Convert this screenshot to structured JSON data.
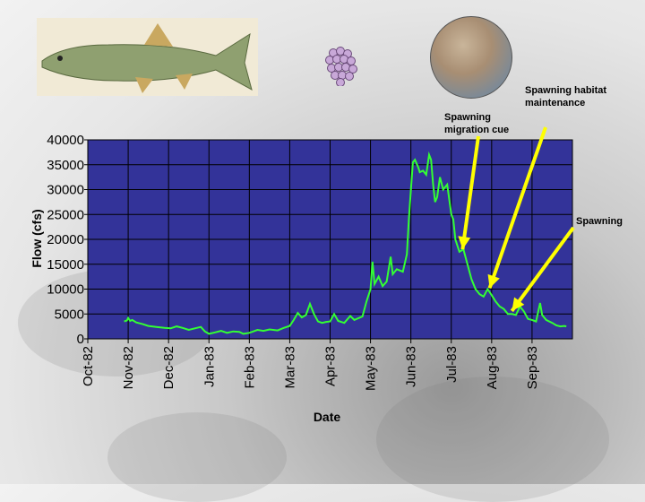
{
  "images": {
    "fish": "fish-illustration",
    "eggs": "fish-eggs-cluster",
    "gravel": "spawning-gravel-photo"
  },
  "annotations": {
    "migration_cue": [
      "Spawning",
      "migration cue"
    ],
    "habitat": [
      "Spawning habitat",
      "maintenance"
    ],
    "spawning": [
      "Spawning"
    ]
  },
  "colors": {
    "plot_bg": "#333399",
    "line": "#33ff33",
    "arrow": "#ffff00"
  },
  "chart_data": {
    "type": "line",
    "title": "",
    "xlabel": "Date",
    "ylabel": "Flow (cfs)",
    "ylim": [
      0,
      40000
    ],
    "yticks": [
      0,
      5000,
      10000,
      15000,
      20000,
      25000,
      30000,
      35000,
      40000
    ],
    "xticks": [
      "Oct-82",
      "Nov-82",
      "Dec-82",
      "Jan-83",
      "Feb-83",
      "Mar-83",
      "Apr-83",
      "May-83",
      "Jun-83",
      "Jul-83",
      "Aug-83",
      "Sep-83"
    ],
    "grid": true,
    "x_unit": "month index (0 = Oct-82)",
    "series": [
      {
        "points": [
          [
            0.9,
            3500
          ],
          [
            0.97,
            3700
          ],
          [
            1.0,
            4200
          ],
          [
            1.05,
            3600
          ],
          [
            1.1,
            3800
          ],
          [
            1.2,
            3300
          ],
          [
            1.35,
            3000
          ],
          [
            1.5,
            2600
          ],
          [
            1.7,
            2400
          ],
          [
            1.9,
            2200
          ],
          [
            2.05,
            2100
          ],
          [
            2.2,
            2500
          ],
          [
            2.35,
            2200
          ],
          [
            2.5,
            1800
          ],
          [
            2.65,
            2100
          ],
          [
            2.8,
            2400
          ],
          [
            2.9,
            1500
          ],
          [
            3.0,
            1000
          ],
          [
            3.15,
            1300
          ],
          [
            3.3,
            1600
          ],
          [
            3.45,
            1200
          ],
          [
            3.6,
            1500
          ],
          [
            3.75,
            1400
          ],
          [
            3.85,
            1000
          ],
          [
            4.0,
            1200
          ],
          [
            4.2,
            1800
          ],
          [
            4.35,
            1600
          ],
          [
            4.5,
            1900
          ],
          [
            4.7,
            1700
          ],
          [
            4.85,
            2200
          ],
          [
            5.0,
            2600
          ],
          [
            5.1,
            3800
          ],
          [
            5.2,
            5200
          ],
          [
            5.3,
            4300
          ],
          [
            5.4,
            4800
          ],
          [
            5.5,
            7000
          ],
          [
            5.6,
            5000
          ],
          [
            5.7,
            3500
          ],
          [
            5.8,
            3200
          ],
          [
            5.9,
            3400
          ],
          [
            6.0,
            3500
          ],
          [
            6.1,
            5000
          ],
          [
            6.2,
            3600
          ],
          [
            6.35,
            3200
          ],
          [
            6.5,
            4600
          ],
          [
            6.6,
            3800
          ],
          [
            6.8,
            4500
          ],
          [
            6.9,
            7500
          ],
          [
            7.0,
            10000
          ],
          [
            7.05,
            15500
          ],
          [
            7.1,
            11000
          ],
          [
            7.2,
            12500
          ],
          [
            7.3,
            10600
          ],
          [
            7.4,
            11500
          ],
          [
            7.5,
            16500
          ],
          [
            7.55,
            13000
          ],
          [
            7.65,
            14000
          ],
          [
            7.8,
            13500
          ],
          [
            7.9,
            17000
          ],
          [
            7.95,
            24000
          ],
          [
            8.0,
            30000
          ],
          [
            8.05,
            35500
          ],
          [
            8.1,
            36000
          ],
          [
            8.18,
            34500
          ],
          [
            8.22,
            33500
          ],
          [
            8.3,
            33800
          ],
          [
            8.38,
            33000
          ],
          [
            8.45,
            37000
          ],
          [
            8.5,
            36000
          ],
          [
            8.55,
            31000
          ],
          [
            8.6,
            27500
          ],
          [
            8.65,
            28500
          ],
          [
            8.72,
            32500
          ],
          [
            8.8,
            30000
          ],
          [
            8.9,
            31000
          ],
          [
            9.0,
            25000
          ],
          [
            9.05,
            24000
          ],
          [
            9.1,
            20000
          ],
          [
            9.2,
            17500
          ],
          [
            9.3,
            18000
          ],
          [
            9.4,
            15000
          ],
          [
            9.5,
            12000
          ],
          [
            9.6,
            10000
          ],
          [
            9.7,
            9000
          ],
          [
            9.8,
            8500
          ],
          [
            9.9,
            10000
          ],
          [
            10.0,
            8800
          ],
          [
            10.1,
            7500
          ],
          [
            10.2,
            6500
          ],
          [
            10.3,
            6000
          ],
          [
            10.4,
            5000
          ],
          [
            10.5,
            5000
          ],
          [
            10.6,
            4800
          ],
          [
            10.7,
            6500
          ],
          [
            10.8,
            5500
          ],
          [
            10.9,
            4000
          ],
          [
            11.0,
            3800
          ],
          [
            11.1,
            3500
          ],
          [
            11.2,
            7200
          ],
          [
            11.25,
            4800
          ],
          [
            11.35,
            3800
          ],
          [
            11.5,
            3200
          ],
          [
            11.6,
            2700
          ],
          [
            11.7,
            2500
          ],
          [
            11.8,
            2600
          ],
          [
            11.85,
            2500
          ]
        ]
      }
    ]
  }
}
